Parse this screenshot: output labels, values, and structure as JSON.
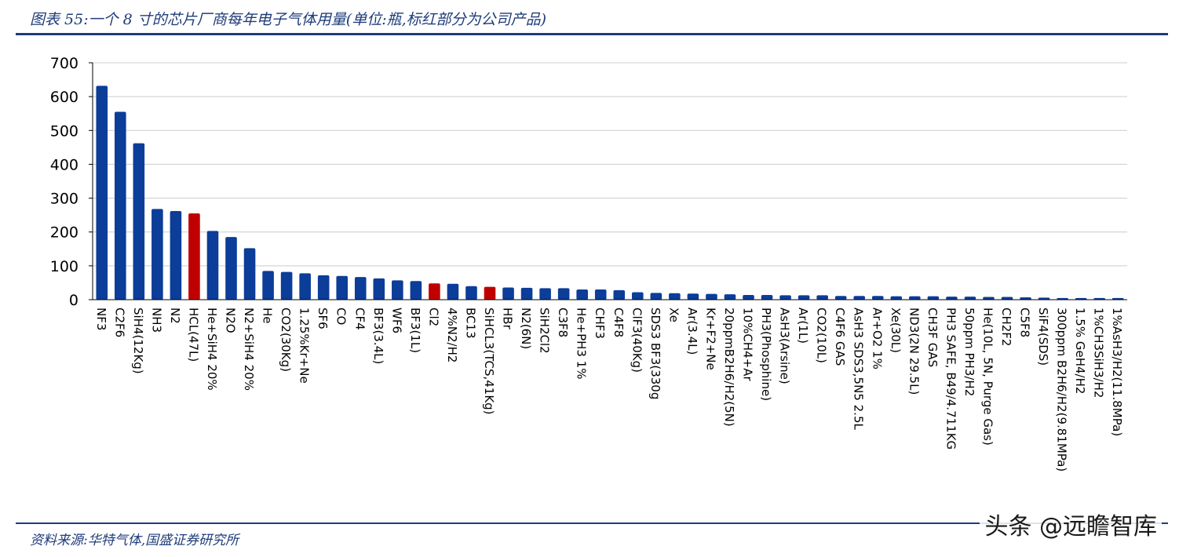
{
  "header": {
    "title": "图表 55:一个 8 寸的芯片厂商每年电子气体用量(单位:瓶,标红部分为公司产品)"
  },
  "footer": {
    "source": "资料来源:华特气体,国盛证券研究所",
    "watermark": "头条 @远瞻智库"
  },
  "colors": {
    "default_bar": "#0b3d99",
    "highlight_bar": "#c00000",
    "title_rule": "#1f3c7a",
    "grid": "#cccccc"
  },
  "chart_data": {
    "type": "bar",
    "title": "",
    "xlabel": "",
    "ylabel": "",
    "ylim": [
      0,
      700
    ],
    "yticks": [
      0,
      100,
      200,
      300,
      400,
      500,
      600,
      700
    ],
    "grid": true,
    "categories": [
      "NF3",
      "C2F6",
      "SiH4(12Kg)",
      "NH3",
      "N2",
      "HCL(47L)",
      "He+SiH4 20%",
      "N2O",
      "N2+SiH4 20%",
      "He",
      "CO2(30Kg)",
      "1.25%Kr+Ne",
      "SF6",
      "CO",
      "CF4",
      "BF3(3.4L)",
      "WF6",
      "BF3(1L)",
      "Cl2",
      "4%N2/H2",
      "BC13",
      "SiHCL3(TCS,41Kg)",
      "HBr",
      "N2(6N)",
      "SiH2Cl2",
      "C3F8",
      "He+PH3 1%",
      "CHF3",
      "C4F8",
      "ClF3(40Kg)",
      "SDS3 BF3(330g",
      "Xe",
      "Ar(3.4L)",
      "Kr+F2+Ne",
      "20ppmB2H6/H2(5N)",
      "10%CH4+Ar",
      "PH3(Phosphine)",
      "AsH3(Arsine)",
      "Ar(1L)",
      "CO2(10L)",
      "C4F6 GAS",
      "AsH3 SDS3,5N5 2.5L",
      "Ar+O2 1%",
      "Xe(30L)",
      "ND3(2N 29.5L)",
      "CH3F GAS",
      "PH3 SAFE, B49/4.711KG",
      "50ppm PH3/H2",
      "He(10L, 5N, Purge Gas)",
      "CH2F2",
      "C5F8",
      "SiF4(SDS)",
      "300ppm B2H6/H2(9.81MPa)",
      "1.5% GeH4/H2",
      "1%CH3SiH3/H2",
      "1%AsH3/H2(11.8MPa)"
    ],
    "values": [
      632,
      555,
      462,
      268,
      262,
      255,
      203,
      185,
      152,
      85,
      82,
      78,
      72,
      70,
      67,
      63,
      57,
      55,
      48,
      47,
      40,
      38,
      36,
      35,
      34,
      34,
      30,
      30,
      28,
      22,
      20,
      19,
      18,
      17,
      16,
      14,
      14,
      13,
      13,
      13,
      11,
      11,
      11,
      10,
      10,
      10,
      9,
      9,
      8,
      8,
      7,
      6,
      5,
      5,
      5,
      5
    ],
    "highlighted": [
      "HCL(47L)",
      "Cl2",
      "SiHCL3(TCS,41Kg)"
    ]
  }
}
